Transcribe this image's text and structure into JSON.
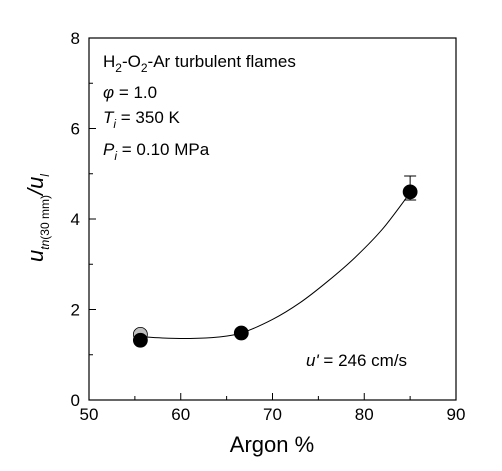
{
  "chart_data": {
    "type": "scatter",
    "xlabel": "Argon %",
    "ylabel": {
      "main": "u",
      "main_sub": "tn",
      "paren": "(30 mm)",
      "slash": "/u",
      "slash_sub": "l"
    },
    "xlim": [
      50,
      90
    ],
    "ylim": [
      0,
      8
    ],
    "x_ticks": [
      "50",
      "60",
      "70",
      "80",
      "90"
    ],
    "y_ticks": [
      "0",
      "2",
      "4",
      "6",
      "8"
    ],
    "annotations": {
      "line1": {
        "a": "H",
        "a_sub": "2",
        "b": "-O",
        "b_sub": "2",
        "c": "-Ar turbulent flames"
      },
      "line2": {
        "sym": "φ",
        "text": " = 1.0"
      },
      "line3": {
        "sym": "T",
        "sym_sub": "i",
        "text": " = 350 K"
      },
      "line4": {
        "sym": "P",
        "sym_sub": "i",
        "text": " = 0.10 MPa"
      },
      "line5": {
        "sym": "u'",
        "text": " = 246 cm/s"
      }
    },
    "series": [
      {
        "marker": "filled-black",
        "color": "#000000",
        "points": [
          {
            "x": 55.6,
            "y": 1.32,
            "err": null
          },
          {
            "x": 66.6,
            "y": 1.48,
            "err": null
          },
          {
            "x": 85.0,
            "y": 4.6,
            "err": [
              4.42,
              4.95
            ]
          }
        ]
      },
      {
        "marker": "filled-gray",
        "color": "#c0c0c0",
        "points": [
          {
            "x": 55.6,
            "y": 1.45,
            "err": null
          }
        ]
      }
    ],
    "fit_curve": [
      {
        "x": 55.6,
        "y": 1.4
      },
      {
        "x": 58.0,
        "y": 1.37
      },
      {
        "x": 61.0,
        "y": 1.36
      },
      {
        "x": 64.0,
        "y": 1.39
      },
      {
        "x": 66.6,
        "y": 1.48
      },
      {
        "x": 70.0,
        "y": 1.78
      },
      {
        "x": 73.0,
        "y": 2.15
      },
      {
        "x": 76.0,
        "y": 2.62
      },
      {
        "x": 79.0,
        "y": 3.15
      },
      {
        "x": 82.0,
        "y": 3.78
      },
      {
        "x": 85.0,
        "y": 4.58
      }
    ]
  }
}
